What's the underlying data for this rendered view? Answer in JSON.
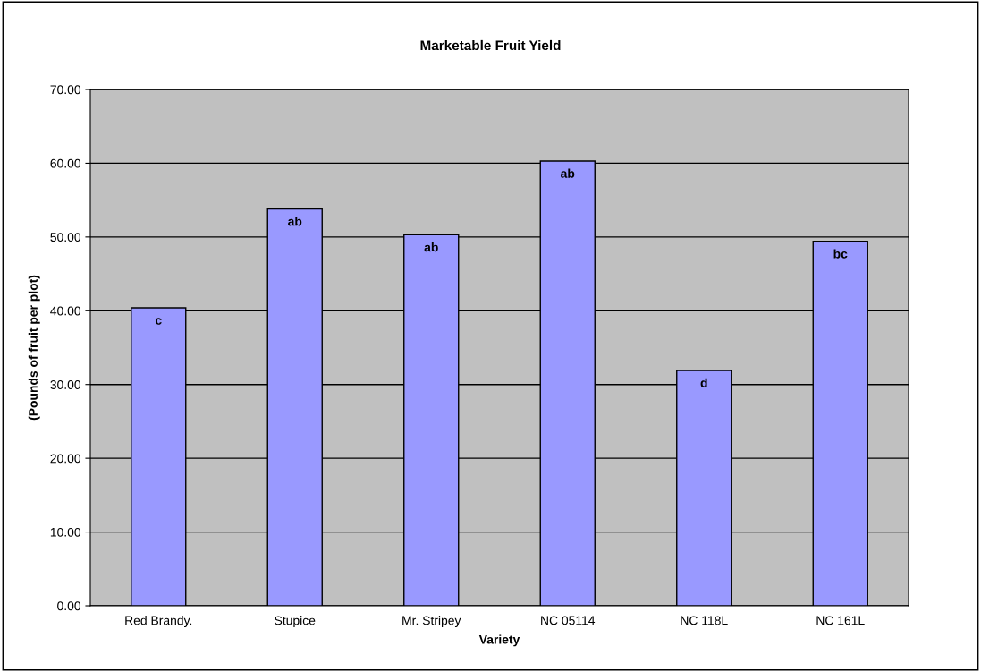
{
  "chart_data": {
    "type": "bar",
    "title": "Marketable Fruit Yield",
    "xlabel": "Variety",
    "ylabel": "(Pounds of fruit per plot)",
    "categories": [
      "Red Brandy.",
      "Stupice",
      "Mr. Stripey",
      "NC 05114",
      "NC 118L",
      "NC 161L"
    ],
    "values": [
      40.4,
      53.8,
      50.3,
      60.3,
      31.9,
      49.4
    ],
    "value_labels": [
      "c",
      "ab",
      "ab",
      "ab",
      "d",
      "bc"
    ],
    "color": "#9999ff",
    "ylim": [
      0,
      70
    ],
    "yticks": [
      {
        "value": 0,
        "label": "0.00"
      },
      {
        "value": 10,
        "label": "10.00"
      },
      {
        "value": 20,
        "label": "20.00"
      },
      {
        "value": 30,
        "label": "30.00"
      },
      {
        "value": 40,
        "label": "40.00"
      },
      {
        "value": 50,
        "label": "50.00"
      },
      {
        "value": 60,
        "label": "60.00"
      },
      {
        "value": 70,
        "label": "70.00"
      }
    ],
    "grid": "y",
    "legend": false
  }
}
